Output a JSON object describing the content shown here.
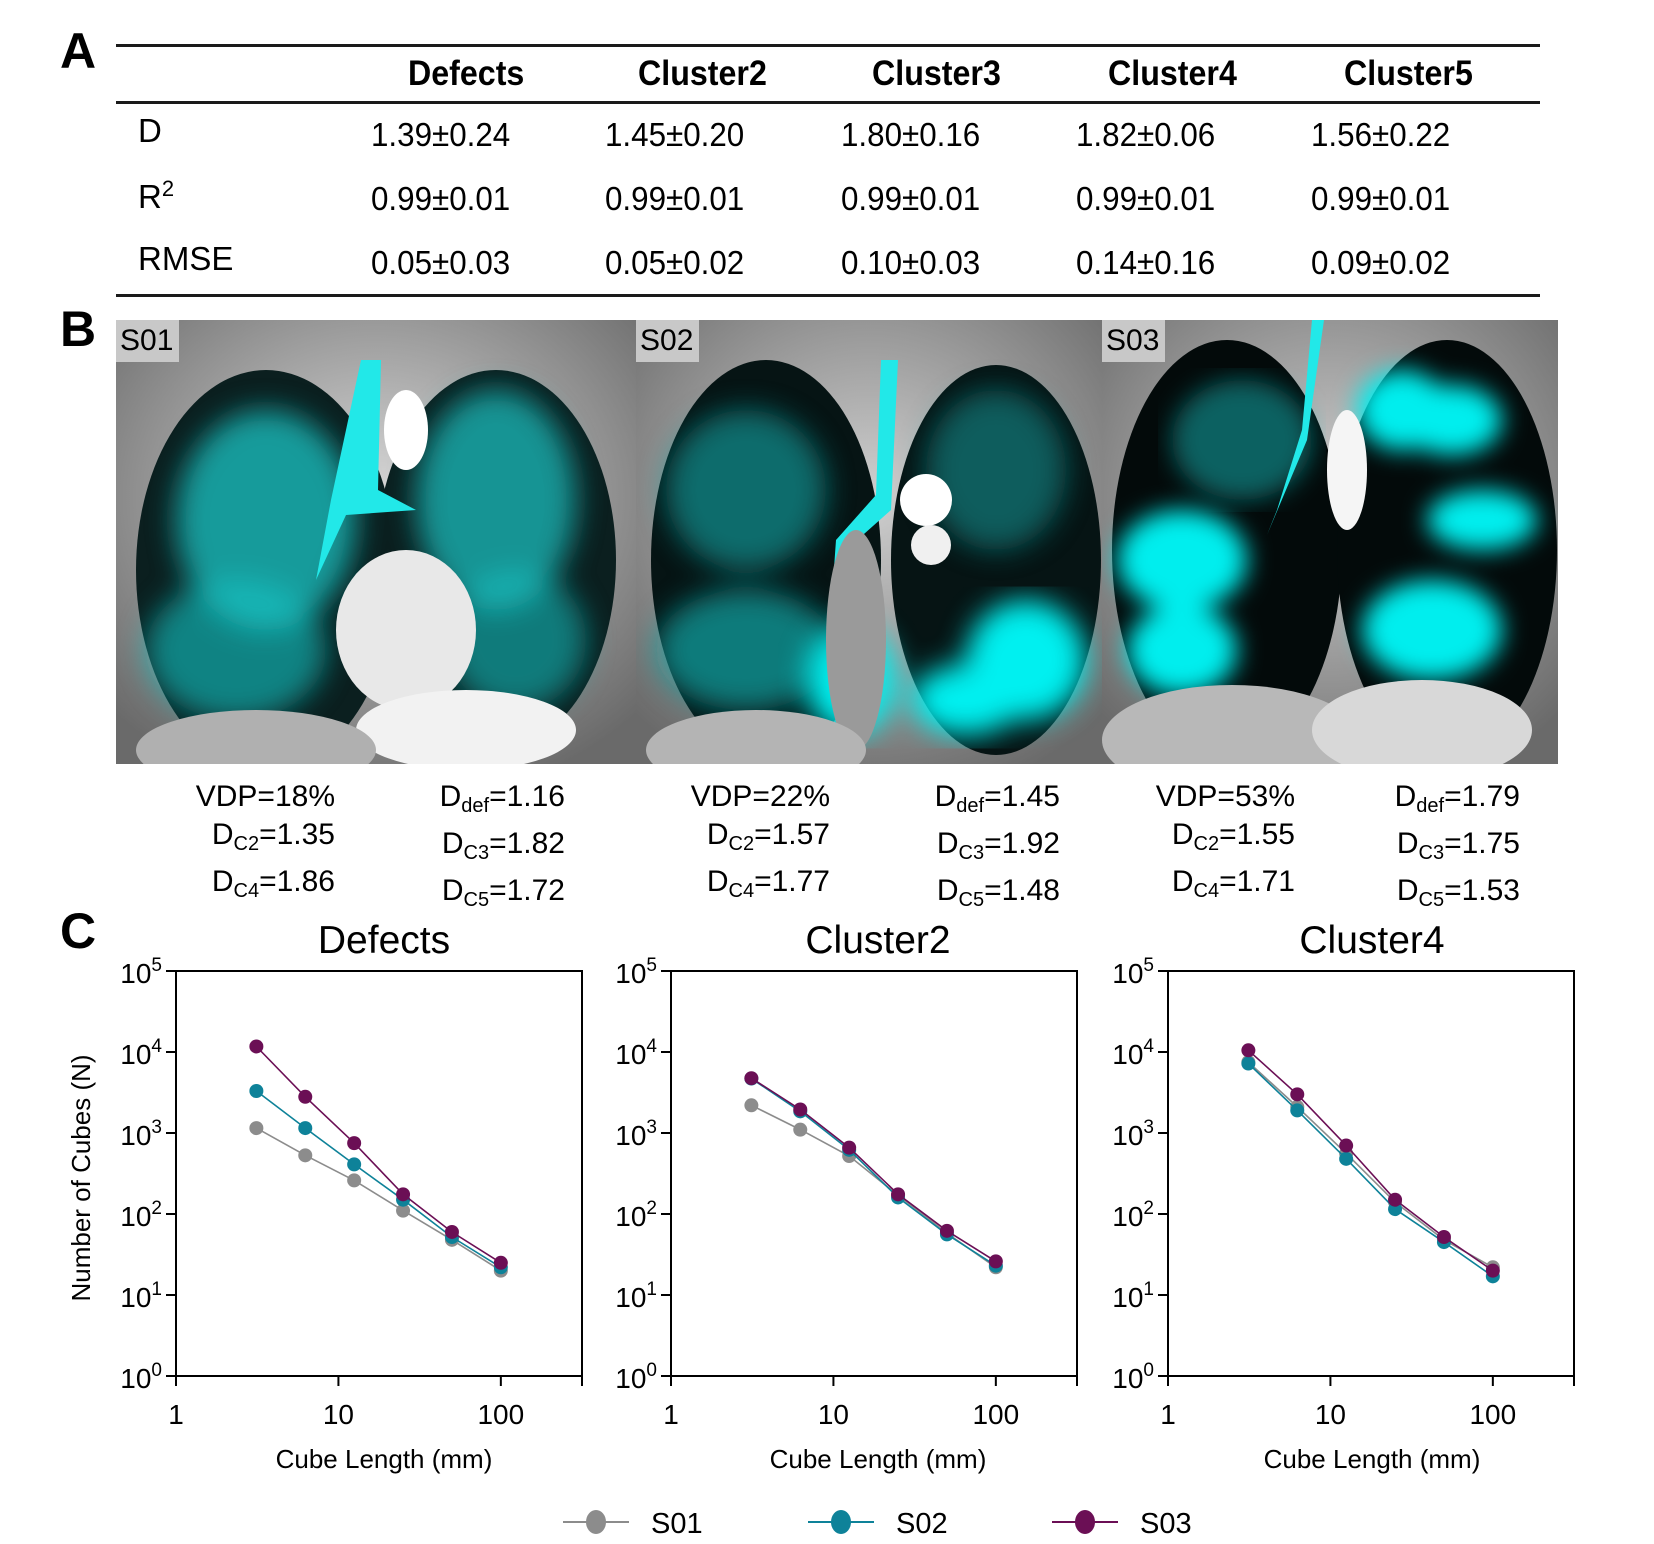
{
  "panel_labels": [
    "A",
    "B",
    "C"
  ],
  "table": {
    "columns": [
      "",
      "Defects",
      "Cluster2",
      "Cluster3",
      "Cluster4",
      "Cluster5"
    ],
    "rows": [
      {
        "label": "D",
        "label_sup": "",
        "values": [
          "1.39±0.24",
          "1.45±0.20",
          "1.80±0.16",
          "1.82±0.06",
          "1.56±0.22"
        ]
      },
      {
        "label": "R",
        "label_sup": "2",
        "values": [
          "0.99±0.01",
          "0.99±0.01",
          "0.99±0.01",
          "0.99±0.01",
          "0.99±0.01"
        ]
      },
      {
        "label": "RMSE",
        "label_sup": "",
        "values": [
          "0.05±0.03",
          "0.05±0.02",
          "0.10±0.03",
          "0.14±0.16",
          "0.09±0.02"
        ]
      }
    ]
  },
  "images": [
    {
      "subject": "S01",
      "vdp": "VDP=18%",
      "d_def": "=1.16",
      "d_c2": "=1.35",
      "d_c3": "=1.82",
      "d_c4": "=1.86",
      "d_c5": "=1.72"
    },
    {
      "subject": "S02",
      "vdp": "VDP=22%",
      "d_def": "=1.45",
      "d_c2": "=1.57",
      "d_c3": "=1.92",
      "d_c4": "=1.77",
      "d_c5": "=1.48"
    },
    {
      "subject": "S03",
      "vdp": "VDP=53%",
      "d_def": "=1.79",
      "d_c2": "=1.55",
      "d_c3": "=1.75",
      "d_c4": "=1.71",
      "d_c5": "=1.53"
    }
  ],
  "subscripts": {
    "D": "D",
    "def": "def",
    "c2": "C2",
    "c3": "C3",
    "c4": "C4",
    "c5": "C5"
  },
  "overlay_color": "#00e5e5",
  "chart_data": [
    {
      "type": "line",
      "title": "Defects",
      "xlabel": "Cube Length (mm)",
      "ylabel": "Number of Cubes (N)",
      "xscale": "log",
      "yscale": "log",
      "xlim": [
        1,
        316
      ],
      "ylim": [
        1,
        100000
      ],
      "xticks": [
        1,
        10,
        100
      ],
      "xtick_labels": [
        "1",
        "10",
        "100"
      ],
      "yticks": [
        1,
        10,
        100,
        1000,
        10000,
        100000
      ],
      "ytick_base": "10",
      "ytick_exps": [
        "0",
        "1",
        "2",
        "3",
        "4",
        "5"
      ],
      "x": [
        3.125,
        6.25,
        12.5,
        25,
        50,
        100
      ],
      "series": [
        {
          "name": "S01",
          "color": "#8c8c8c",
          "values": [
            1150,
            530,
            260,
            110,
            48,
            20
          ]
        },
        {
          "name": "S02",
          "color": "#0e8299",
          "values": [
            3300,
            1150,
            410,
            150,
            52,
            22
          ]
        },
        {
          "name": "S03",
          "color": "#6b0f55",
          "values": [
            11700,
            2800,
            750,
            175,
            60,
            25
          ]
        }
      ],
      "grid": false
    },
    {
      "type": "line",
      "title": "Cluster2",
      "xlabel": "Cube Length (mm)",
      "ylabel": "",
      "xscale": "log",
      "yscale": "log",
      "xlim": [
        1,
        316
      ],
      "ylim": [
        1,
        100000
      ],
      "xticks": [
        1,
        10,
        100
      ],
      "xtick_labels": [
        "1",
        "10",
        "100"
      ],
      "yticks": [
        1,
        10,
        100,
        1000,
        10000,
        100000
      ],
      "ytick_base": "10",
      "ytick_exps": [
        "0",
        "1",
        "2",
        "3",
        "4",
        "5"
      ],
      "x": [
        3.125,
        6.25,
        12.5,
        25,
        50,
        100
      ],
      "series": [
        {
          "name": "S01",
          "color": "#8c8c8c",
          "values": [
            2200,
            1100,
            520,
            170,
            58,
            22
          ]
        },
        {
          "name": "S02",
          "color": "#0e8299",
          "values": [
            4700,
            1850,
            620,
            160,
            56,
            23
          ]
        },
        {
          "name": "S03",
          "color": "#6b0f55",
          "values": [
            4750,
            1950,
            660,
            175,
            62,
            26
          ]
        }
      ],
      "grid": false
    },
    {
      "type": "line",
      "title": "Cluster4",
      "xlabel": "Cube Length (mm)",
      "ylabel": "",
      "xscale": "log",
      "yscale": "log",
      "xlim": [
        1,
        316
      ],
      "ylim": [
        1,
        100000
      ],
      "xticks": [
        1,
        10,
        100
      ],
      "xtick_labels": [
        "1",
        "10",
        "100"
      ],
      "yticks": [
        1,
        10,
        100,
        1000,
        10000,
        100000
      ],
      "ytick_base": "10",
      "ytick_exps": [
        "0",
        "1",
        "2",
        "3",
        "4",
        "5"
      ],
      "x": [
        3.125,
        6.25,
        12.5,
        25,
        50,
        100
      ],
      "series": [
        {
          "name": "S01",
          "color": "#8c8c8c",
          "values": [
            7500,
            2100,
            560,
            140,
            48,
            22
          ]
        },
        {
          "name": "S02",
          "color": "#0e8299",
          "values": [
            7200,
            1900,
            480,
            115,
            45,
            17
          ]
        },
        {
          "name": "S03",
          "color": "#6b0f55",
          "values": [
            10500,
            3000,
            700,
            150,
            52,
            20
          ]
        }
      ],
      "grid": false
    }
  ],
  "legend": {
    "placement": "bottom-center",
    "items": [
      {
        "label": "S01",
        "color": "#8c8c8c"
      },
      {
        "label": "S02",
        "color": "#0e8299"
      },
      {
        "label": "S03",
        "color": "#6b0f55"
      }
    ]
  }
}
